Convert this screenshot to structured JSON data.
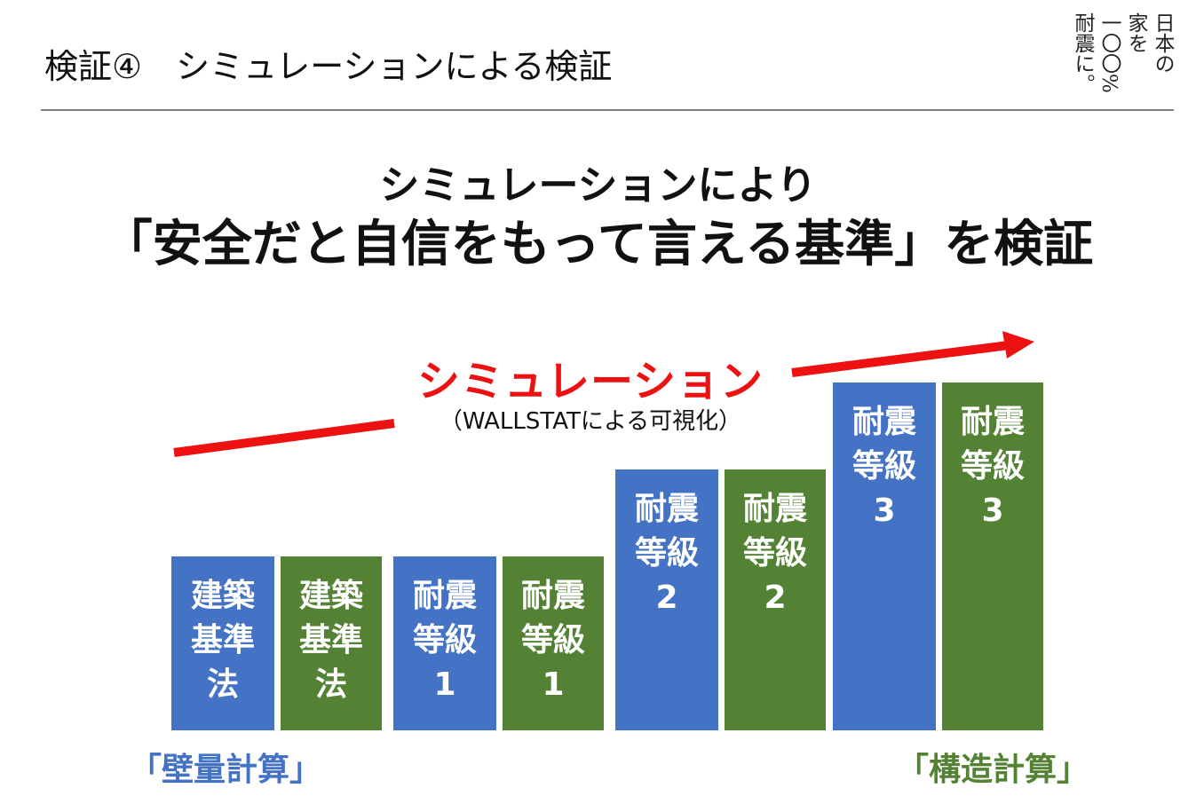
{
  "header": {
    "title": "検証④　シミュレーションによる検証",
    "brand_columns": [
      "日本の",
      "家を",
      "一〇〇%",
      "耐震に。"
    ]
  },
  "headline": {
    "line1": "シミュレーションにより",
    "line2": "「安全だと自信をもって言える基準」を検証"
  },
  "simulation": {
    "label": "シミュレーション",
    "sublabel": "（WALLSTATによる可視化）"
  },
  "colors": {
    "wall_quantity": "#4472c4",
    "structural_calc": "#548235",
    "arrow": "#ee1111",
    "blue_text": "#4472c4",
    "green_text": "#548235"
  },
  "chart_data": {
    "type": "bar",
    "categories": [
      "建築基準法",
      "耐震等級1",
      "耐震等級2",
      "耐震等級3"
    ],
    "series": [
      {
        "name": "「壁量計算」",
        "color": "#4472c4",
        "labels": [
          [
            "建築",
            "基準",
            "法"
          ],
          [
            "耐震",
            "等級",
            "1"
          ],
          [
            "耐震",
            "等級",
            "2"
          ],
          [
            "耐震",
            "等級",
            "3"
          ]
        ],
        "values": [
          1.0,
          1.0,
          1.5,
          2.0
        ]
      },
      {
        "name": "「構造計算」",
        "color": "#548235",
        "labels": [
          [
            "建築",
            "基準",
            "法"
          ],
          [
            "耐震",
            "等級",
            "1"
          ],
          [
            "耐震",
            "等級",
            "2"
          ],
          [
            "耐震",
            "等級",
            "3"
          ]
        ],
        "values": [
          1.0,
          1.0,
          1.5,
          2.0
        ]
      }
    ]
  },
  "methods": {
    "left": "「壁量計算」",
    "right": "「構造計算」"
  }
}
